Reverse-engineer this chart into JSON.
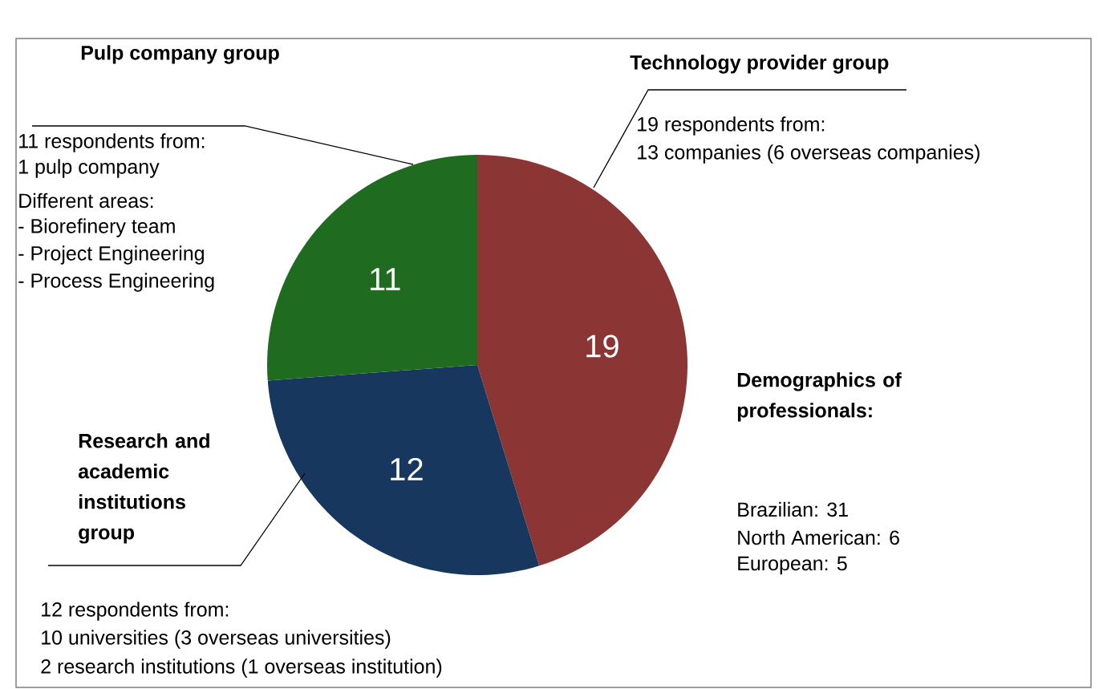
{
  "chart_data": {
    "type": "pie",
    "categories": [
      "Technology provider group",
      "Research and academic institutions group",
      "Pulp company group"
    ],
    "values": [
      19,
      12,
      11
    ],
    "colors": [
      "#8b3535",
      "#17375e",
      "#1f6b1f"
    ],
    "data_labels": true,
    "annotations": [
      "11 respondents from:",
      "1 pulp company",
      "Different areas:",
      "- Biorefinery team",
      "- Project Engineering",
      "-  Process Engineering",
      "19 respondents from:",
      "13 companies (6 overseas companies)",
      "Demographics of professionals:",
      "Brazilian: 31",
      "North American: 6",
      "European: 5",
      "12 respondents from:",
      "10 universities  (3 overseas universities)",
      "2 research institutions  (1 overseas institution)"
    ]
  }
}
